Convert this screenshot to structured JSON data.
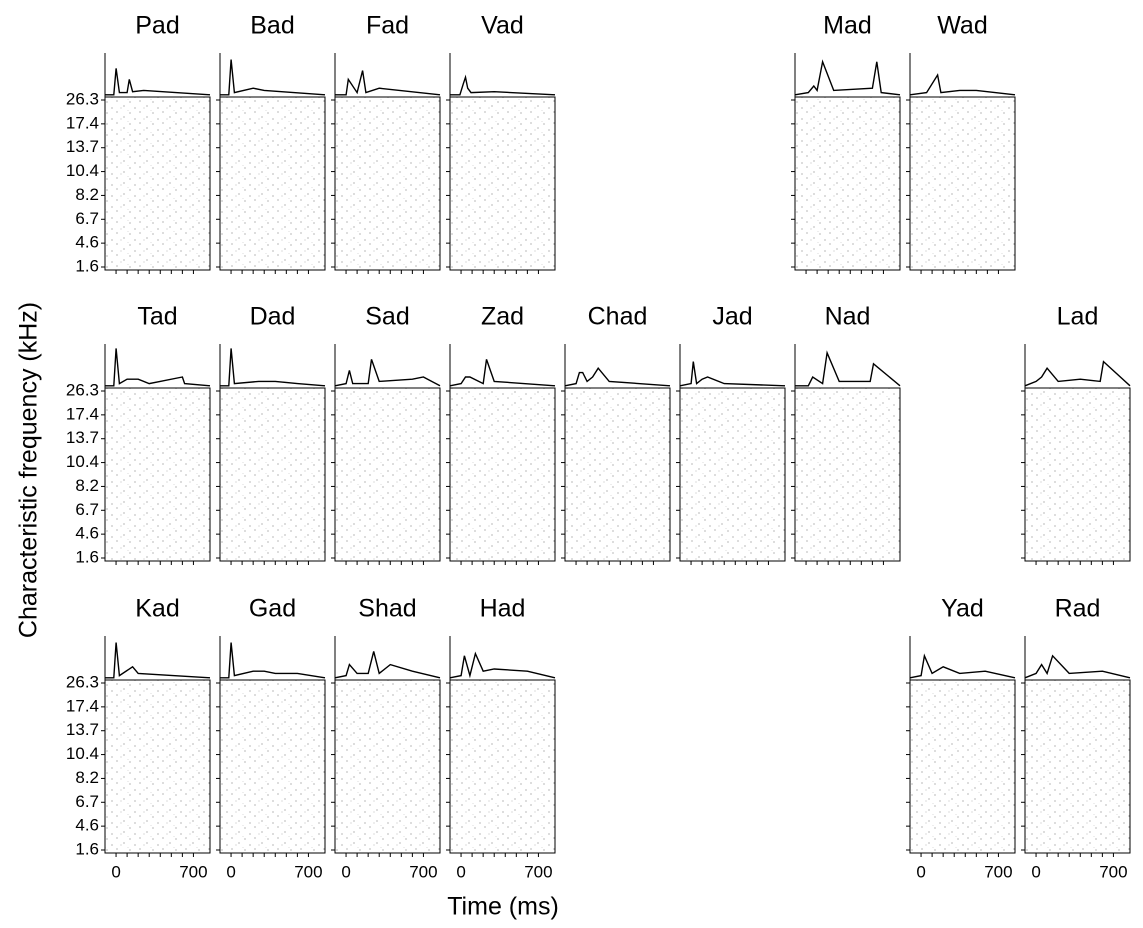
{
  "axes": {
    "xlabel": "Time (ms)",
    "ylabel": "Characteristic frequency (kHz)",
    "xlim": [
      -100,
      850
    ],
    "xticks": [
      0,
      700
    ],
    "xminorticks": [
      0,
      100,
      200,
      300,
      400,
      500,
      600,
      700
    ],
    "y_categories": [
      1.6,
      4.6,
      6.7,
      8.2,
      10.4,
      13.7,
      17.4,
      26.3
    ],
    "psth_ylim": [
      0,
      1
    ]
  },
  "chart_data": [
    {
      "type": "line",
      "title": "Pad",
      "x": [
        -100,
        -20,
        0,
        30,
        100,
        120,
        150,
        250,
        850
      ],
      "values": [
        0.05,
        0.05,
        0.65,
        0.1,
        0.1,
        0.4,
        0.12,
        0.15,
        0.05
      ]
    },
    {
      "type": "line",
      "title": "Bad",
      "x": [
        -100,
        -20,
        0,
        30,
        200,
        300,
        850
      ],
      "values": [
        0.05,
        0.05,
        0.85,
        0.1,
        0.2,
        0.15,
        0.05
      ]
    },
    {
      "type": "line",
      "title": "Fad",
      "x": [
        -100,
        0,
        20,
        100,
        150,
        180,
        300,
        850
      ],
      "values": [
        0.05,
        0.05,
        0.4,
        0.1,
        0.6,
        0.1,
        0.2,
        0.05
      ]
    },
    {
      "type": "line",
      "title": "Vad",
      "x": [
        -100,
        -10,
        20,
        40,
        60,
        90,
        300,
        850
      ],
      "values": [
        0.05,
        0.05,
        0.3,
        0.45,
        0.2,
        0.1,
        0.12,
        0.05
      ]
    },
    {
      "type": "line",
      "title": "Mad",
      "x": [
        -100,
        20,
        70,
        100,
        150,
        250,
        600,
        640,
        680,
        850
      ],
      "values": [
        0.05,
        0.1,
        0.25,
        0.15,
        0.8,
        0.15,
        0.2,
        0.8,
        0.1,
        0.05
      ]
    },
    {
      "type": "line",
      "title": "Wad",
      "x": [
        -100,
        50,
        150,
        180,
        350,
        500,
        850
      ],
      "values": [
        0.05,
        0.1,
        0.5,
        0.1,
        0.15,
        0.15,
        0.05
      ]
    },
    {
      "type": "line",
      "title": "Tad",
      "x": [
        -100,
        -20,
        0,
        30,
        100,
        200,
        300,
        600,
        620,
        850
      ],
      "values": [
        0.05,
        0.05,
        0.9,
        0.1,
        0.2,
        0.2,
        0.1,
        0.25,
        0.1,
        0.05
      ]
    },
    {
      "type": "line",
      "title": "Dad",
      "x": [
        -100,
        -20,
        0,
        30,
        250,
        400,
        600,
        850
      ],
      "values": [
        0.05,
        0.05,
        0.9,
        0.1,
        0.15,
        0.15,
        0.1,
        0.05
      ]
    },
    {
      "type": "line",
      "title": "Sad",
      "x": [
        -100,
        0,
        30,
        60,
        200,
        230,
        300,
        600,
        700,
        850
      ],
      "values": [
        0.05,
        0.1,
        0.4,
        0.1,
        0.1,
        0.65,
        0.15,
        0.2,
        0.25,
        0.05
      ]
    },
    {
      "type": "line",
      "title": "Zad",
      "x": [
        -100,
        0,
        40,
        80,
        200,
        230,
        300,
        850
      ],
      "values": [
        0.05,
        0.1,
        0.25,
        0.25,
        0.1,
        0.65,
        0.15,
        0.05
      ]
    },
    {
      "type": "line",
      "title": "Chad",
      "x": [
        -100,
        0,
        30,
        60,
        100,
        150,
        200,
        300,
        850
      ],
      "values": [
        0.05,
        0.1,
        0.35,
        0.35,
        0.15,
        0.25,
        0.45,
        0.15,
        0.05
      ]
    },
    {
      "type": "line",
      "title": "Jad",
      "x": [
        -100,
        0,
        20,
        50,
        100,
        150,
        300,
        850
      ],
      "values": [
        0.05,
        0.1,
        0.6,
        0.1,
        0.2,
        0.25,
        0.1,
        0.05
      ]
    },
    {
      "type": "line",
      "title": "Nad",
      "x": [
        -100,
        20,
        60,
        150,
        190,
        300,
        580,
        610,
        850
      ],
      "values": [
        0.05,
        0.05,
        0.25,
        0.1,
        0.8,
        0.15,
        0.15,
        0.55,
        0.05
      ]
    },
    {
      "type": "line",
      "title": "Lad",
      "x": [
        -100,
        0,
        50,
        100,
        200,
        400,
        580,
        610,
        850
      ],
      "values": [
        0.05,
        0.15,
        0.25,
        0.45,
        0.15,
        0.2,
        0.15,
        0.6,
        0.05
      ]
    },
    {
      "type": "line",
      "title": "Kad",
      "x": [
        -100,
        -20,
        0,
        30,
        150,
        200,
        850
      ],
      "values": [
        0.05,
        0.05,
        0.85,
        0.1,
        0.3,
        0.15,
        0.05
      ]
    },
    {
      "type": "line",
      "title": "Gad",
      "x": [
        -100,
        -20,
        0,
        30,
        200,
        300,
        400,
        600,
        850
      ],
      "values": [
        0.05,
        0.05,
        0.85,
        0.1,
        0.2,
        0.2,
        0.15,
        0.15,
        0.05
      ]
    },
    {
      "type": "line",
      "title": "Shad",
      "x": [
        -100,
        0,
        30,
        100,
        200,
        250,
        300,
        400,
        600,
        850
      ],
      "values": [
        0.05,
        0.1,
        0.35,
        0.15,
        0.15,
        0.65,
        0.15,
        0.35,
        0.2,
        0.05
      ]
    },
    {
      "type": "line",
      "title": "Had",
      "x": [
        -100,
        0,
        30,
        80,
        130,
        200,
        300,
        600,
        850
      ],
      "values": [
        0.05,
        0.1,
        0.55,
        0.1,
        0.6,
        0.2,
        0.25,
        0.2,
        0.05
      ]
    },
    {
      "type": "line",
      "title": "Yad",
      "x": [
        -100,
        0,
        30,
        100,
        200,
        350,
        580,
        850
      ],
      "values": [
        0.05,
        0.1,
        0.55,
        0.15,
        0.3,
        0.15,
        0.2,
        0.05
      ]
    },
    {
      "type": "line",
      "title": "Rad",
      "x": [
        -100,
        0,
        50,
        100,
        150,
        300,
        600,
        850
      ],
      "values": [
        0.05,
        0.15,
        0.35,
        0.15,
        0.55,
        0.15,
        0.2,
        0.05
      ]
    }
  ]
}
